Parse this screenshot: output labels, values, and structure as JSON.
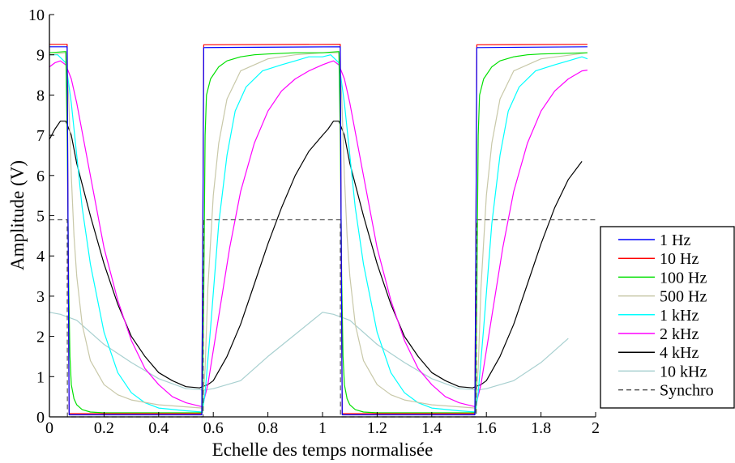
{
  "chart_data": {
    "type": "line",
    "title": "",
    "xlabel": "Echelle des temps normalisée",
    "ylabel": "Amplitude (V)",
    "xlim": [
      0,
      2
    ],
    "ylim": [
      0,
      10
    ],
    "xticks": [
      0,
      0.2,
      0.4,
      0.6,
      0.8,
      1,
      1.2,
      1.4,
      1.6,
      1.8,
      2
    ],
    "xtick_labels": [
      "0",
      "0.2",
      "0.4",
      "0.6",
      "0.8",
      "1",
      "1.2",
      "1.4",
      "1.6",
      "1.8",
      "2"
    ],
    "yticks": [
      0,
      1,
      2,
      3,
      4,
      5,
      6,
      7,
      8,
      9,
      10
    ],
    "ytick_labels": [
      "0",
      "1",
      "2",
      "3",
      "4",
      "5",
      "6",
      "7",
      "8",
      "9",
      "10"
    ],
    "grid": false,
    "legend_position": "right",
    "series": [
      {
        "name": "1 Hz",
        "color": "#0000ff",
        "style": "solid",
        "x": [
          0,
          0.065,
          0.068,
          0.072,
          0.558,
          0.562,
          0.565,
          1.065,
          1.068,
          1.072,
          1.558,
          1.562,
          1.565,
          1.97
        ],
        "y": [
          9.2,
          9.2,
          5,
          0.05,
          0.05,
          5,
          9.18,
          9.2,
          5,
          0.05,
          0.05,
          5,
          9.18,
          9.2
        ]
      },
      {
        "name": "10 Hz",
        "color": "#ff0000",
        "style": "solid",
        "x": [
          0,
          0.065,
          0.068,
          0.072,
          0.558,
          0.562,
          0.565,
          1.065,
          1.068,
          1.072,
          1.558,
          1.562,
          1.565,
          1.97
        ],
        "y": [
          9.26,
          9.26,
          5,
          0.08,
          0.08,
          5,
          9.25,
          9.26,
          5,
          0.08,
          0.08,
          5,
          9.25,
          9.26
        ]
      },
      {
        "name": "100 Hz",
        "color": "#00e000",
        "style": "solid",
        "x": [
          0,
          0.06,
          0.065,
          0.07,
          0.075,
          0.08,
          0.09,
          0.1,
          0.12,
          0.15,
          0.2,
          0.3,
          0.4,
          0.5,
          0.56,
          0.565,
          0.57,
          0.575,
          0.59,
          0.62,
          0.65,
          0.7,
          0.75,
          0.8,
          0.9,
          1.0,
          1.06,
          1.065,
          1.07,
          1.075,
          1.08,
          1.09,
          1.1,
          1.12,
          1.15,
          1.2,
          1.3,
          1.4,
          1.5,
          1.56,
          1.565,
          1.57,
          1.575,
          1.59,
          1.62,
          1.65,
          1.7,
          1.75,
          1.8,
          1.97
        ],
        "y": [
          9.05,
          9.08,
          7.0,
          3.5,
          1.5,
          0.8,
          0.45,
          0.3,
          0.18,
          0.12,
          0.1,
          0.1,
          0.1,
          0.1,
          0.1,
          3.0,
          7.0,
          8.0,
          8.4,
          8.7,
          8.85,
          8.95,
          9.0,
          9.02,
          9.05,
          9.05,
          9.08,
          7.0,
          3.5,
          1.5,
          0.8,
          0.45,
          0.3,
          0.18,
          0.12,
          0.1,
          0.1,
          0.1,
          0.1,
          0.1,
          3.0,
          7.0,
          8.0,
          8.4,
          8.7,
          8.85,
          8.95,
          9.0,
          9.02,
          9.05
        ]
      },
      {
        "name": "500 Hz",
        "color": "#c8c8a8",
        "style": "solid",
        "x": [
          0,
          0.06,
          0.07,
          0.08,
          0.09,
          0.1,
          0.12,
          0.15,
          0.2,
          0.25,
          0.3,
          0.4,
          0.5,
          0.56,
          0.57,
          0.58,
          0.6,
          0.62,
          0.65,
          0.7,
          0.8,
          0.9,
          1.0,
          1.06,
          1.07,
          1.08,
          1.09,
          1.1,
          1.12,
          1.15,
          1.2,
          1.25,
          1.3,
          1.4,
          1.5,
          1.56,
          1.57,
          1.58,
          1.6,
          1.62,
          1.65,
          1.7,
          1.8,
          1.97
        ],
        "y": [
          9.0,
          9.05,
          8.0,
          6.0,
          4.5,
          3.5,
          2.3,
          1.4,
          0.8,
          0.55,
          0.42,
          0.3,
          0.25,
          0.22,
          1.2,
          3.2,
          5.5,
          6.8,
          7.9,
          8.6,
          8.9,
          9.0,
          9.05,
          9.05,
          8.0,
          6.0,
          4.5,
          3.5,
          2.3,
          1.4,
          0.8,
          0.55,
          0.42,
          0.3,
          0.25,
          0.22,
          1.2,
          3.2,
          5.5,
          6.8,
          7.9,
          8.6,
          8.9,
          9.05
        ]
      },
      {
        "name": "1 kHz",
        "color": "#00ffff",
        "style": "solid",
        "x": [
          0,
          0.03,
          0.06,
          0.08,
          0.1,
          0.12,
          0.15,
          0.2,
          0.25,
          0.3,
          0.35,
          0.4,
          0.5,
          0.56,
          0.57,
          0.59,
          0.62,
          0.65,
          0.68,
          0.72,
          0.78,
          0.85,
          0.9,
          0.95,
          1.0,
          1.03,
          1.06,
          1.08,
          1.1,
          1.12,
          1.15,
          1.2,
          1.25,
          1.3,
          1.35,
          1.4,
          1.5,
          1.56,
          1.57,
          1.59,
          1.62,
          1.65,
          1.68,
          1.72,
          1.78,
          1.85,
          1.9,
          1.95,
          1.97
        ],
        "y": [
          9.0,
          9.0,
          8.8,
          7.8,
          6.5,
          5.2,
          3.8,
          2.1,
          1.1,
          0.6,
          0.35,
          0.22,
          0.15,
          0.12,
          0.6,
          2.2,
          4.8,
          6.5,
          7.6,
          8.2,
          8.6,
          8.75,
          8.85,
          8.95,
          8.95,
          9.0,
          8.8,
          7.8,
          6.5,
          5.2,
          3.8,
          2.1,
          1.1,
          0.6,
          0.35,
          0.22,
          0.15,
          0.12,
          0.6,
          2.2,
          4.8,
          6.5,
          7.6,
          8.2,
          8.6,
          8.75,
          8.85,
          8.95,
          8.9
        ]
      },
      {
        "name": "2 kHz",
        "color": "#ff00ff",
        "style": "solid",
        "x": [
          0,
          0.02,
          0.04,
          0.06,
          0.08,
          0.1,
          0.15,
          0.2,
          0.25,
          0.3,
          0.35,
          0.4,
          0.45,
          0.5,
          0.56,
          0.58,
          0.62,
          0.66,
          0.7,
          0.75,
          0.8,
          0.85,
          0.9,
          0.95,
          1.0,
          1.02,
          1.04,
          1.06,
          1.08,
          1.1,
          1.15,
          1.2,
          1.25,
          1.3,
          1.35,
          1.4,
          1.45,
          1.5,
          1.56,
          1.58,
          1.62,
          1.66,
          1.7,
          1.75,
          1.8,
          1.85,
          1.9,
          1.95,
          1.97
        ],
        "y": [
          8.7,
          8.8,
          8.85,
          8.75,
          8.4,
          7.8,
          6.0,
          4.2,
          2.9,
          1.9,
          1.2,
          0.8,
          0.5,
          0.35,
          0.25,
          0.8,
          2.5,
          4.2,
          5.6,
          6.8,
          7.6,
          8.1,
          8.4,
          8.6,
          8.75,
          8.8,
          8.85,
          8.75,
          8.4,
          7.8,
          6.0,
          4.2,
          2.9,
          1.9,
          1.2,
          0.8,
          0.5,
          0.35,
          0.25,
          0.8,
          2.5,
          4.2,
          5.6,
          6.8,
          7.6,
          8.1,
          8.4,
          8.6,
          8.62
        ]
      },
      {
        "name": "4 kHz",
        "color": "#000000",
        "style": "solid",
        "x": [
          0,
          0.02,
          0.04,
          0.06,
          0.08,
          0.1,
          0.15,
          0.2,
          0.25,
          0.3,
          0.35,
          0.4,
          0.45,
          0.5,
          0.55,
          0.56,
          0.58,
          0.6,
          0.65,
          0.7,
          0.75,
          0.8,
          0.85,
          0.9,
          0.95,
          1.0,
          1.02,
          1.04,
          1.06,
          1.08,
          1.1,
          1.15,
          1.2,
          1.25,
          1.3,
          1.35,
          1.4,
          1.45,
          1.5,
          1.55,
          1.56,
          1.58,
          1.6,
          1.65,
          1.7,
          1.75,
          1.8,
          1.85,
          1.9,
          1.95
        ],
        "y": [
          6.9,
          7.15,
          7.35,
          7.35,
          7.0,
          6.3,
          5.0,
          3.8,
          2.8,
          2.0,
          1.5,
          1.1,
          0.9,
          0.75,
          0.72,
          0.75,
          0.8,
          0.9,
          1.5,
          2.3,
          3.3,
          4.3,
          5.2,
          6.0,
          6.6,
          7.0,
          7.15,
          7.35,
          7.35,
          7.0,
          6.3,
          5.0,
          3.8,
          2.8,
          2.0,
          1.5,
          1.1,
          0.9,
          0.75,
          0.72,
          0.75,
          0.8,
          0.9,
          1.5,
          2.3,
          3.3,
          4.3,
          5.2,
          5.9,
          6.35
        ]
      },
      {
        "name": "10 kHz",
        "color": "#a8d0d0",
        "style": "solid",
        "x": [
          0,
          0.04,
          0.1,
          0.2,
          0.3,
          0.4,
          0.5,
          0.55,
          0.56,
          0.6,
          0.7,
          0.8,
          0.9,
          1.0,
          1.04,
          1.1,
          1.2,
          1.3,
          1.4,
          1.5,
          1.55,
          1.56,
          1.6,
          1.7,
          1.8,
          1.9
        ],
        "y": [
          2.6,
          2.55,
          2.4,
          1.8,
          1.35,
          0.95,
          0.7,
          0.68,
          0.66,
          0.7,
          0.9,
          1.5,
          2.05,
          2.6,
          2.55,
          2.4,
          1.8,
          1.35,
          0.95,
          0.7,
          0.68,
          0.66,
          0.7,
          0.9,
          1.35,
          1.95
        ]
      },
      {
        "name": "Synchro",
        "color": "#555555",
        "style": "dashed",
        "x": [
          0,
          0.062,
          0.065,
          0.066,
          0.56,
          0.563,
          0.564,
          1.062,
          1.065,
          1.066,
          1.56,
          1.563,
          1.564,
          2.0
        ],
        "y": [
          4.9,
          4.9,
          4.9,
          0,
          0,
          0,
          4.9,
          4.9,
          4.9,
          0,
          0,
          0,
          4.9,
          4.9
        ]
      }
    ]
  }
}
